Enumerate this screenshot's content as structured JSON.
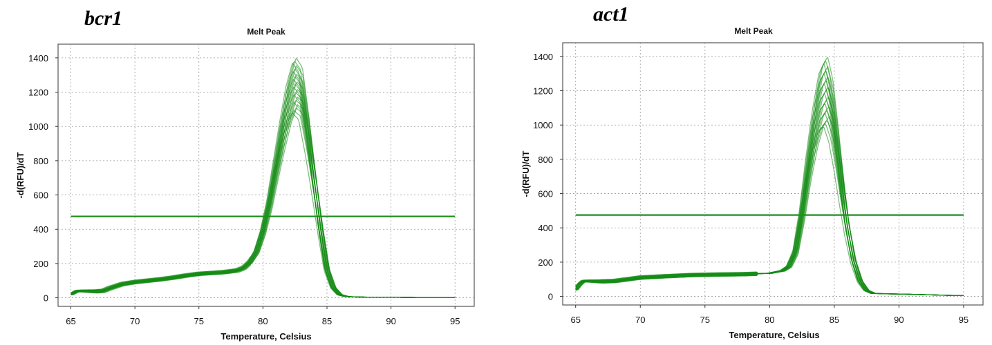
{
  "chart_data": [
    {
      "type": "line",
      "gene_label": "bcr1",
      "title": "Melt Peak",
      "xlabel": "Temperature, Celsius",
      "ylabel": "-d(RFU)/dT",
      "xlim": [
        64,
        96.5
      ],
      "ylim": [
        -50,
        1480
      ],
      "x_ticks": [
        65,
        70,
        75,
        80,
        85,
        90,
        95
      ],
      "y_ticks": [
        0,
        200,
        400,
        600,
        800,
        1000,
        1200,
        1400
      ],
      "grid": true,
      "legend": "none",
      "series_color": "#128a12",
      "threshold": {
        "y": 475,
        "x_range": [
          65,
          95
        ],
        "color": "#1e8f1e"
      },
      "curve_count": 22,
      "representative_curve": {
        "x": [
          65,
          65.5,
          66,
          67,
          67.5,
          68,
          69,
          70,
          71,
          72,
          73,
          74,
          75,
          76,
          77,
          78,
          78.5,
          79,
          79.5,
          80,
          80.5,
          81,
          81.5,
          82,
          82.5,
          83,
          83.5,
          84,
          84.5,
          85,
          85.5,
          86,
          86.5,
          87,
          88,
          90,
          92,
          95
        ],
        "y": [
          20,
          40,
          40,
          38,
          40,
          55,
          80,
          92,
          100,
          108,
          118,
          130,
          140,
          145,
          150,
          160,
          175,
          210,
          270,
          390,
          560,
          780,
          1000,
          1200,
          1330,
          1280,
          1020,
          720,
          420,
          170,
          60,
          18,
          8,
          5,
          4,
          3,
          2,
          2
        ]
      },
      "peak_range": [
        1080,
        1400
      ],
      "peak_temperature": 82.5
    },
    {
      "type": "line",
      "gene_label": "act1",
      "title": "Melt Peak",
      "xlabel": "Temperature, Celsius",
      "ylabel": "-d(RFU)/dT",
      "xlim": [
        64,
        96.5
      ],
      "ylim": [
        -50,
        1480
      ],
      "x_ticks": [
        65,
        70,
        75,
        80,
        85,
        90,
        95
      ],
      "y_ticks": [
        0,
        200,
        400,
        600,
        800,
        1000,
        1200,
        1400
      ],
      "grid": true,
      "legend": "none",
      "series_color": "#128a12",
      "threshold": {
        "y": 475,
        "x_range": [
          65,
          95
        ],
        "color": "#1e8f1e"
      },
      "curve_count": 22,
      "representative_curve": {
        "x": [
          65,
          65.3,
          65.6,
          66,
          67,
          68,
          69,
          70,
          72,
          74,
          76,
          78,
          80,
          81,
          81.5,
          82,
          82.5,
          83,
          83.5,
          84,
          84.4,
          84.8,
          85.2,
          85.6,
          86,
          86.5,
          87,
          87.5,
          88,
          89,
          90,
          91,
          92,
          93,
          94,
          95
        ],
        "y": [
          40,
          70,
          90,
          90,
          88,
          90,
          100,
          110,
          118,
          125,
          128,
          130,
          135,
          150,
          175,
          260,
          480,
          760,
          1000,
          1180,
          1230,
          1120,
          900,
          650,
          420,
          210,
          90,
          35,
          18,
          15,
          14,
          12,
          10,
          8,
          6,
          5
        ]
      },
      "peak_range": [
        990,
        1400
      ],
      "peak_temperature": 84.4
    }
  ]
}
